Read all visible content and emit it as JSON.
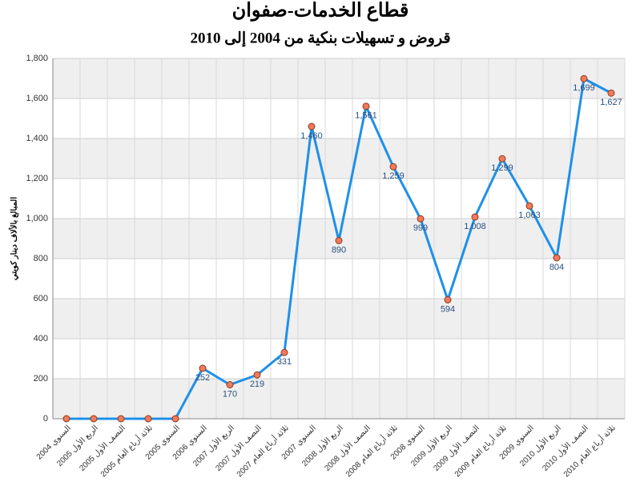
{
  "chart_data": {
    "type": "line",
    "title": "قطاع الخدمات-صفوان",
    "subtitle": "قروض و تسهيلات بنكية من 2004 إلى 2010",
    "y_label": "المبالغ بالألاف دينار كويتي",
    "categories": [
      "السنوي 2004",
      "الربع الأول 2005",
      "النصف الأول 2005",
      "ثلاثة أرباع العام 2005",
      "السنوي 2005",
      "السنوي 2006",
      "الربع الأول 2007",
      "النصف الأول 2007",
      "ثلاثة أرباع العام 2007",
      "السنوي 2007",
      "الربع الأول 2008",
      "النصف الأول 2008",
      "ثلاثة أرباع العام 2008",
      "السنوي 2008",
      "الربع الأول 2009",
      "النصف الأول 2009",
      "ثلاثة أرباع العام 2009",
      "السنوي 2009",
      "الربع الأول 2010",
      "النصف الأول 2010",
      "ثلاثة أرباع العام 2010"
    ],
    "values": [
      0,
      0,
      0,
      0,
      0,
      252,
      170,
      219,
      331,
      1460,
      890,
      1561,
      1259,
      999,
      594,
      1008,
      1299,
      1063,
      804,
      1699,
      1627
    ],
    "value_labels": [
      null,
      null,
      null,
      null,
      null,
      "252",
      "170",
      "219",
      "331",
      "1,460",
      "890",
      "1,561",
      "1,259",
      "999",
      "594",
      "1,008",
      "1,299",
      "1,063",
      "804",
      "1,699",
      "1,627"
    ],
    "color": "#1e90e8",
    "marker_color": "#f07a5a",
    "ylim": [
      0,
      1800
    ],
    "yticks": [
      0,
      200,
      400,
      600,
      800,
      {
        "value": 1000,
        "label": "1,000"
      },
      {
        "value": 1200,
        "label": "1,200"
      },
      {
        "value": 1400,
        "label": "1,400"
      },
      {
        "value": 1600,
        "label": "1,600"
      },
      {
        "value": 1800,
        "label": "1,800"
      }
    ],
    "grid": true
  }
}
